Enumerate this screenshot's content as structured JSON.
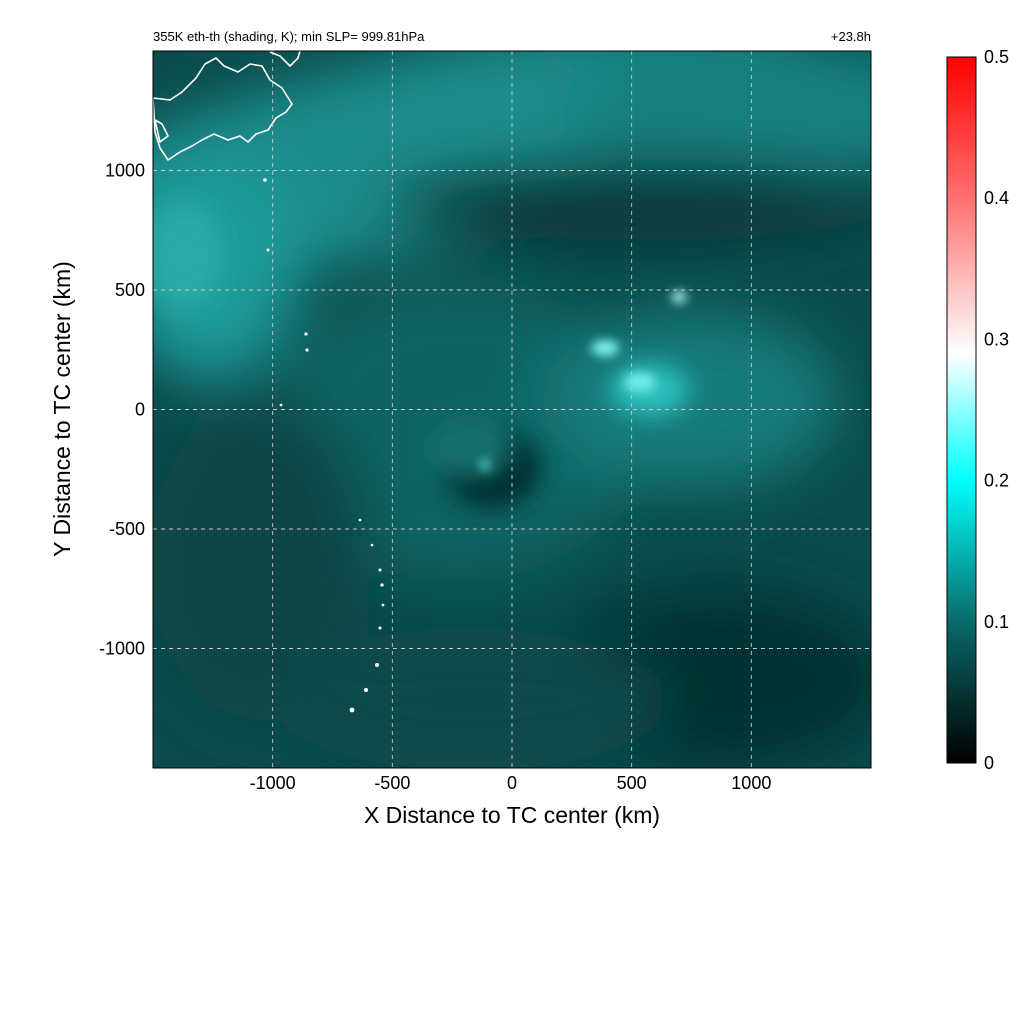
{
  "chart_data": {
    "type": "heatmap",
    "title_left": "355K eth-th (shading, K); min SLP= 999.81hPa",
    "title_right": "+23.8h",
    "xlabel": "X Distance to TC center (km)",
    "ylabel": "Y Distance to TC center (km)",
    "xlim": [
      -1500,
      1500
    ],
    "ylim": [
      -1500,
      1500
    ],
    "x_ticks": [
      -1000,
      -500,
      0,
      500,
      1000
    ],
    "y_ticks": [
      1000,
      500,
      0,
      -500,
      -1000
    ],
    "x_tick_labels": [
      "-1000",
      "-500",
      "0",
      "500",
      "1000"
    ],
    "y_tick_labels": [
      "1000",
      "500",
      "0",
      "-500",
      "-1000"
    ],
    "grid": true,
    "colorbar": {
      "range": [
        0,
        0.5
      ],
      "ticks": [
        0,
        0.1,
        0.2,
        0.3,
        0.4,
        0.5
      ],
      "tick_labels": [
        "0",
        "0.1",
        "0.2",
        "0.3",
        "0.4",
        "0.5"
      ],
      "colors": [
        "#000000",
        "#0a6a6a",
        "#00ffff",
        "#ffffff",
        "#ff7070",
        "#ff0000"
      ]
    },
    "features": {
      "tc_center": [
        0,
        0
      ],
      "coastline_color": "#ffffff"
    }
  }
}
